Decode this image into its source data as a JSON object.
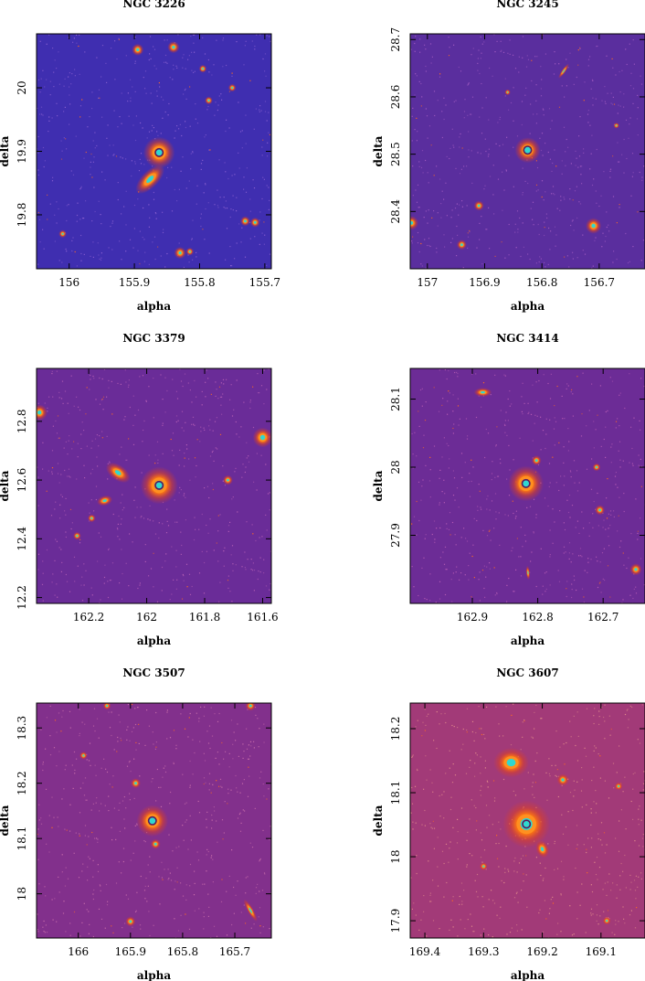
{
  "panels": [
    {
      "title": "NGC 3226",
      "xlabel": "alpha",
      "ylabel": "delta",
      "xlim": [
        156.05,
        155.69
      ],
      "ylim": [
        19.715,
        20.085
      ],
      "xticks": [
        156,
        155.9,
        155.8,
        155.7
      ],
      "xtick_labels": [
        "156",
        "155.9",
        "155.8",
        "155.7"
      ],
      "yticks": [
        19.8,
        19.9,
        20
      ],
      "ytick_labels": [
        "19.8",
        "19.9",
        "20"
      ],
      "background": "#3f2eb0",
      "noise": "#8a60d0",
      "center": [
        155.862,
        19.898
      ],
      "sources": [
        {
          "ra": 155.862,
          "dec": 19.898,
          "size": 1.6,
          "kind": "target"
        },
        {
          "ra": 155.876,
          "dec": 19.856,
          "size": 1.9,
          "kind": "galaxy",
          "angle": -45,
          "ecc": 2.2
        },
        {
          "ra": 155.895,
          "dec": 20.06,
          "size": 0.6,
          "kind": "star"
        },
        {
          "ra": 155.84,
          "dec": 20.064,
          "size": 0.6,
          "kind": "star"
        },
        {
          "ra": 155.795,
          "dec": 20.03,
          "size": 0.4,
          "kind": "star"
        },
        {
          "ra": 155.75,
          "dec": 20.0,
          "size": 0.4,
          "kind": "star"
        },
        {
          "ra": 155.73,
          "dec": 19.79,
          "size": 0.5,
          "kind": "star"
        },
        {
          "ra": 155.715,
          "dec": 19.788,
          "size": 0.5,
          "kind": "star"
        },
        {
          "ra": 155.83,
          "dec": 19.74,
          "size": 0.6,
          "kind": "star"
        },
        {
          "ra": 155.815,
          "dec": 19.742,
          "size": 0.4,
          "kind": "star"
        },
        {
          "ra": 156.01,
          "dec": 19.77,
          "size": 0.4,
          "kind": "star"
        },
        {
          "ra": 155.786,
          "dec": 19.98,
          "size": 0.4,
          "kind": "star"
        }
      ]
    },
    {
      "title": "NGC 3245",
      "xlabel": "alpha",
      "ylabel": "delta",
      "xlim": [
        157.03,
        156.62
      ],
      "ylim": [
        28.3,
        28.71
      ],
      "xticks": [
        157,
        156.9,
        156.8,
        156.7
      ],
      "xtick_labels": [
        "157",
        "156.9",
        "156.8",
        "156.7"
      ],
      "yticks": [
        28.4,
        28.5,
        28.6,
        28.7
      ],
      "ytick_labels": [
        "28.4",
        "28.5",
        "28.6",
        "28.7"
      ],
      "background": "#5a2e9e",
      "noise": "#a05ac0",
      "center": [
        156.825,
        28.507
      ],
      "sources": [
        {
          "ra": 156.825,
          "dec": 28.507,
          "size": 1.3,
          "kind": "target"
        },
        {
          "ra": 156.762,
          "dec": 28.645,
          "size": 0.9,
          "kind": "galaxy",
          "angle": -55,
          "ecc": 4.5
        },
        {
          "ra": 157.028,
          "dec": 28.38,
          "size": 0.7,
          "kind": "star"
        },
        {
          "ra": 156.71,
          "dec": 28.375,
          "size": 0.8,
          "kind": "star"
        },
        {
          "ra": 156.91,
          "dec": 28.41,
          "size": 0.5,
          "kind": "star"
        },
        {
          "ra": 156.94,
          "dec": 28.342,
          "size": 0.5,
          "kind": "star"
        },
        {
          "ra": 156.86,
          "dec": 28.608,
          "size": 0.3,
          "kind": "star"
        },
        {
          "ra": 156.67,
          "dec": 28.55,
          "size": 0.3,
          "kind": "star"
        }
      ]
    },
    {
      "title": "NGC 3379",
      "xlabel": "alpha",
      "ylabel": "delta",
      "xlim": [
        162.38,
        161.57
      ],
      "ylim": [
        12.18,
        12.98
      ],
      "xticks": [
        162.2,
        162,
        161.8,
        161.6
      ],
      "xtick_labels": [
        "162.2",
        "162",
        "161.8",
        "161.6"
      ],
      "yticks": [
        12.2,
        12.4,
        12.6,
        12.8
      ],
      "ytick_labels": [
        "12.2",
        "12.4",
        "12.6",
        "12.8"
      ],
      "background": "#6a2c98",
      "noise": "#b45eb4",
      "center": [
        161.957,
        12.582
      ],
      "sources": [
        {
          "ra": 161.957,
          "dec": 12.582,
          "size": 1.9,
          "kind": "target"
        },
        {
          "ra": 162.099,
          "dec": 12.625,
          "size": 1.4,
          "kind": "galaxy",
          "angle": 35,
          "ecc": 1.8
        },
        {
          "ra": 162.145,
          "dec": 12.53,
          "size": 0.8,
          "kind": "galaxy",
          "angle": -15,
          "ecc": 1.6
        },
        {
          "ra": 162.37,
          "dec": 12.83,
          "size": 0.8,
          "kind": "star"
        },
        {
          "ra": 161.6,
          "dec": 12.745,
          "size": 1.0,
          "kind": "star"
        },
        {
          "ra": 161.72,
          "dec": 12.6,
          "size": 0.5,
          "kind": "star"
        },
        {
          "ra": 162.24,
          "dec": 12.41,
          "size": 0.4,
          "kind": "star"
        },
        {
          "ra": 162.19,
          "dec": 12.47,
          "size": 0.4,
          "kind": "star"
        }
      ]
    },
    {
      "title": "NGC 3414",
      "xlabel": "alpha",
      "ylabel": "delta",
      "xlim": [
        162.995,
        162.636
      ],
      "ylim": [
        27.8,
        28.145
      ],
      "xticks": [
        162.9,
        162.8,
        162.7
      ],
      "xtick_labels": [
        "162.9",
        "162.8",
        "162.7"
      ],
      "yticks": [
        27.9,
        28,
        28.1
      ],
      "ytick_labels": [
        "27.9",
        "28",
        "28.1"
      ],
      "background": "#6c2c96",
      "noise": "#b65cb4",
      "center": [
        162.818,
        27.976
      ],
      "sources": [
        {
          "ra": 162.818,
          "dec": 27.976,
          "size": 1.8,
          "kind": "target"
        },
        {
          "ra": 162.884,
          "dec": 28.11,
          "size": 0.9,
          "kind": "galaxy",
          "angle": 0,
          "ecc": 2.0
        },
        {
          "ra": 162.815,
          "dec": 27.845,
          "size": 0.7,
          "kind": "galaxy",
          "angle": 85,
          "ecc": 3.5
        },
        {
          "ra": 162.802,
          "dec": 28.01,
          "size": 0.5,
          "kind": "star"
        },
        {
          "ra": 162.65,
          "dec": 27.85,
          "size": 0.6,
          "kind": "star"
        },
        {
          "ra": 162.705,
          "dec": 27.937,
          "size": 0.5,
          "kind": "star"
        },
        {
          "ra": 162.71,
          "dec": 28.0,
          "size": 0.4,
          "kind": "star"
        }
      ]
    },
    {
      "title": "NGC 3507",
      "xlabel": "alpha",
      "ylabel": "delta",
      "xlim": [
        166.08,
        165.63
      ],
      "ylim": [
        17.92,
        18.345
      ],
      "xticks": [
        166,
        165.9,
        165.8,
        165.7
      ],
      "xtick_labels": [
        "166",
        "165.9",
        "165.8",
        "165.7"
      ],
      "yticks": [
        18,
        18.1,
        18.2,
        18.3
      ],
      "ytick_labels": [
        "18",
        "18.1",
        "18.2",
        "18.3"
      ],
      "background": "#82308c",
      "noise": "#c86eaa",
      "center": [
        165.858,
        18.132
      ],
      "sources": [
        {
          "ra": 165.858,
          "dec": 18.132,
          "size": 1.6,
          "kind": "target"
        },
        {
          "ra": 165.67,
          "dec": 17.97,
          "size": 1.3,
          "kind": "galaxy",
          "angle": 60,
          "ecc": 4.2
        },
        {
          "ra": 165.852,
          "dec": 18.09,
          "size": 0.5,
          "kind": "star"
        },
        {
          "ra": 165.89,
          "dec": 18.2,
          "size": 0.5,
          "kind": "star"
        },
        {
          "ra": 165.9,
          "dec": 17.95,
          "size": 0.5,
          "kind": "star"
        },
        {
          "ra": 165.67,
          "dec": 18.34,
          "size": 0.5,
          "kind": "star"
        },
        {
          "ra": 165.945,
          "dec": 18.34,
          "size": 0.4,
          "kind": "star"
        },
        {
          "ra": 165.99,
          "dec": 18.25,
          "size": 0.4,
          "kind": "star"
        }
      ]
    },
    {
      "title": "NGC 3607",
      "xlabel": "alpha",
      "ylabel": "delta",
      "xlim": [
        169.425,
        169.025
      ],
      "ylim": [
        17.873,
        18.24
      ],
      "xticks": [
        169.4,
        169.3,
        169.2,
        169.1
      ],
      "xtick_labels": [
        "169.4",
        "169.3",
        "169.2",
        "169.1"
      ],
      "yticks": [
        17.9,
        18,
        18.1,
        18.2
      ],
      "ytick_labels": [
        "17.9",
        "18",
        "18.1",
        "18.2"
      ],
      "background": "#a23a78",
      "noise": "#e08a8a",
      "center": [
        169.227,
        18.051
      ],
      "sources": [
        {
          "ra": 169.227,
          "dec": 18.051,
          "size": 2.4,
          "kind": "target"
        },
        {
          "ra": 169.253,
          "dec": 18.147,
          "size": 1.8,
          "kind": "galaxy",
          "angle": 0,
          "ecc": 1.2
        },
        {
          "ra": 169.2,
          "dec": 18.012,
          "size": 0.9,
          "kind": "galaxy",
          "angle": 70,
          "ecc": 1.4
        },
        {
          "ra": 169.165,
          "dec": 18.12,
          "size": 0.6,
          "kind": "star"
        },
        {
          "ra": 169.07,
          "dec": 18.11,
          "size": 0.4,
          "kind": "star"
        },
        {
          "ra": 169.3,
          "dec": 17.985,
          "size": 0.4,
          "kind": "star"
        },
        {
          "ra": 169.09,
          "dec": 17.9,
          "size": 0.4,
          "kind": "star"
        }
      ]
    }
  ]
}
